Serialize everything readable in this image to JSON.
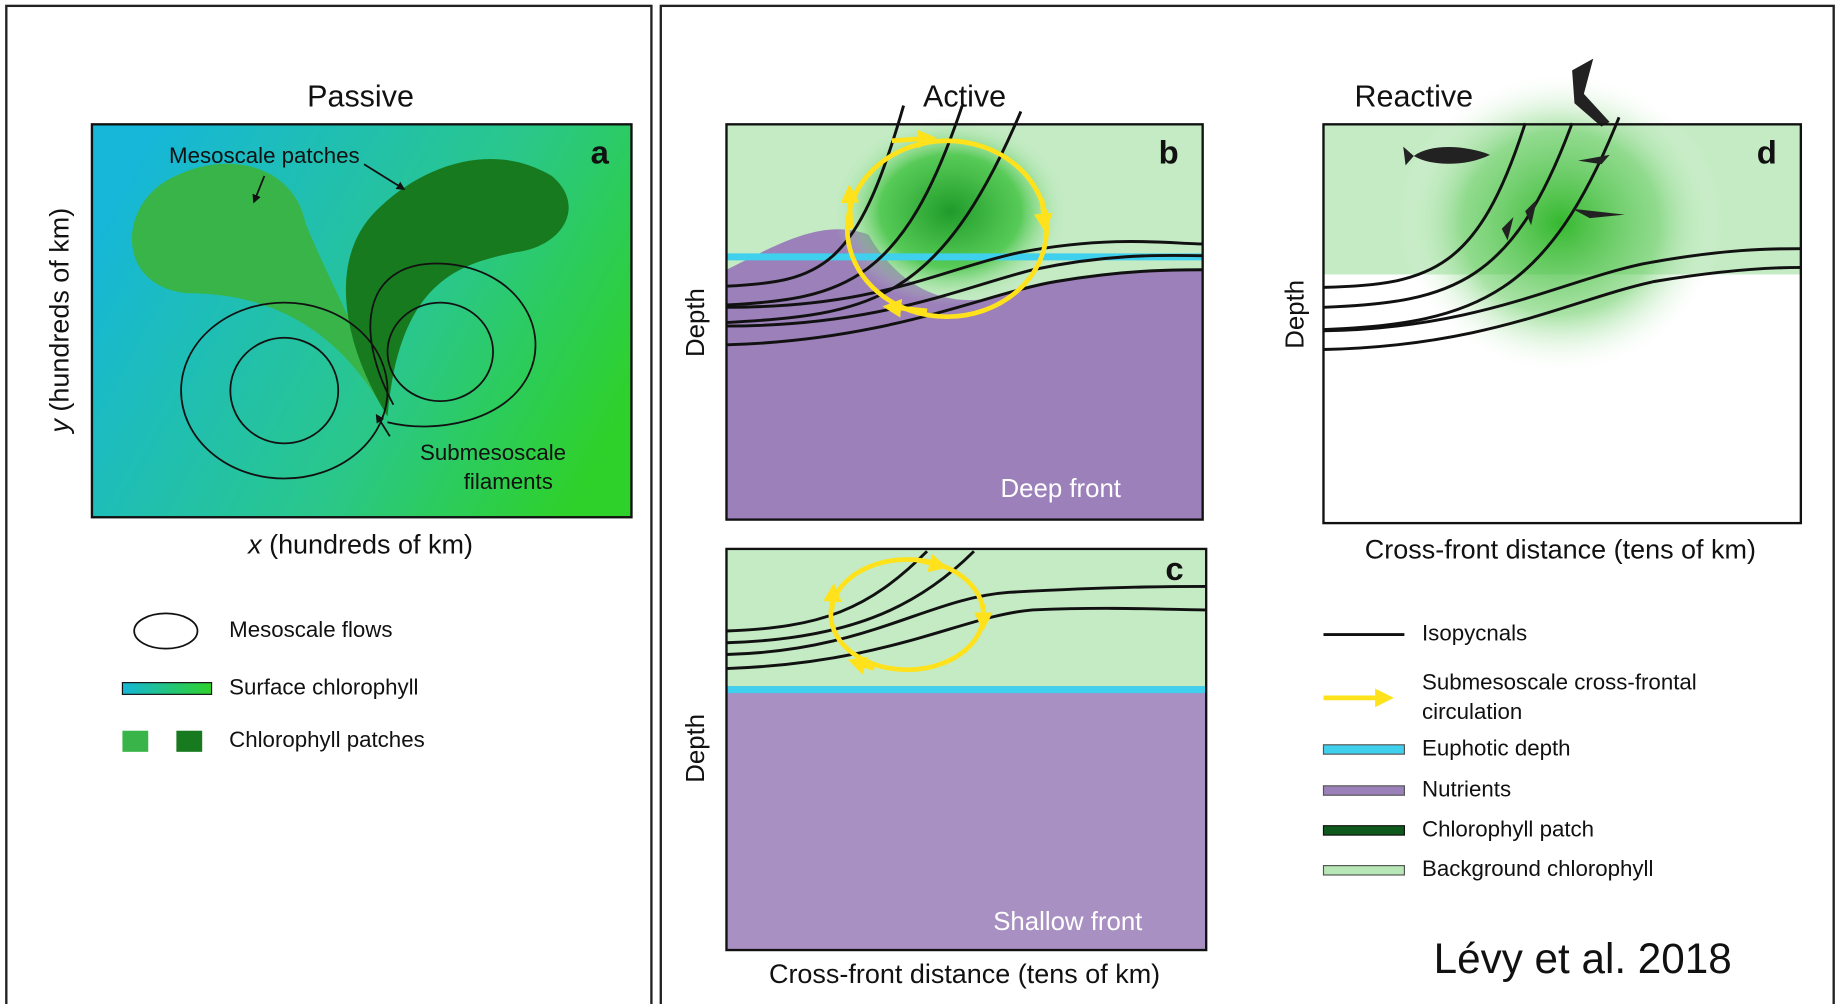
{
  "panel_a": {
    "title": "Passive",
    "letter": "a",
    "y_label_var": "y",
    "y_label": " (hundreds of km)",
    "x_label_var": "x",
    "x_label": " (hundreds of km)",
    "annotations": [
      "Mesoscale patches",
      "Submesoscale",
      "filaments"
    ]
  },
  "legend_a": [
    "Mesoscale flows",
    "Surface chlorophyll",
    "Chlorophyll patches"
  ],
  "panel_b": {
    "title": "Active",
    "letter": "b",
    "y_label": "Depth",
    "caption": "Deep front"
  },
  "panel_c": {
    "letter": "c",
    "y_label": "Depth",
    "caption": "Shallow front",
    "x_label": "Cross-front distance (tens of km)"
  },
  "panel_d": {
    "title": "Reactive",
    "letter": "d",
    "y_label": "Depth",
    "x_label": "Cross-front distance (tens of km)"
  },
  "legend_d": [
    "Isopycnals",
    "Submesoscale cross-frontal",
    "circulation",
    "Euphotic depth",
    "Nutrients",
    "Chlorophyll patch",
    "Background chlorophyll"
  ],
  "citation": "Lévy et al. 2018"
}
